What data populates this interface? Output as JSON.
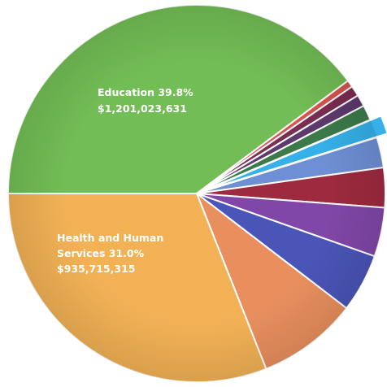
{
  "chart_data": {
    "type": "pie",
    "title": "",
    "start_angle_deg": 180,
    "direction": "clockwise",
    "series": [
      {
        "name": "",
        "slices": [
          {
            "label": "Education",
            "percent": 39.8,
            "amount": "$1,201,023,631",
            "color": "#72bd55",
            "text_lines": [
              "Education 39.8%",
              "$1,201,023,631"
            ]
          },
          {
            "label": "",
            "percent": 0.6,
            "amount": "",
            "color": "#d9534f"
          },
          {
            "label": "",
            "percent": 0.9,
            "amount": "",
            "color": "#7b2d52"
          },
          {
            "label": "",
            "percent": 1.0,
            "amount": "",
            "color": "#5e3a6e"
          },
          {
            "label": "",
            "percent": 1.3,
            "amount": "",
            "color": "#3d7a4a"
          },
          {
            "label": "",
            "percent": 1.6,
            "amount": "",
            "color": "#35b0e8",
            "exploded": true
          },
          {
            "label": "",
            "percent": 2.6,
            "amount": "",
            "color": "#6e8fd4"
          },
          {
            "label": "",
            "percent": 3.4,
            "amount": "",
            "color": "#9e2a3f"
          },
          {
            "label": "",
            "percent": 4.2,
            "amount": "",
            "color": "#8147a8"
          },
          {
            "label": "",
            "percent": 5.0,
            "amount": "",
            "color": "#4a55b8"
          },
          {
            "label": "",
            "percent": 8.6,
            "amount": "",
            "color": "#e98f5e"
          },
          {
            "label": "Health and Human Services",
            "percent": 31.0,
            "amount": "$935,715,315",
            "color": "#f2b155",
            "text_lines": [
              "Health and Human",
              "Services 31.0%",
              "$935,715,315"
            ]
          }
        ]
      }
    ]
  }
}
